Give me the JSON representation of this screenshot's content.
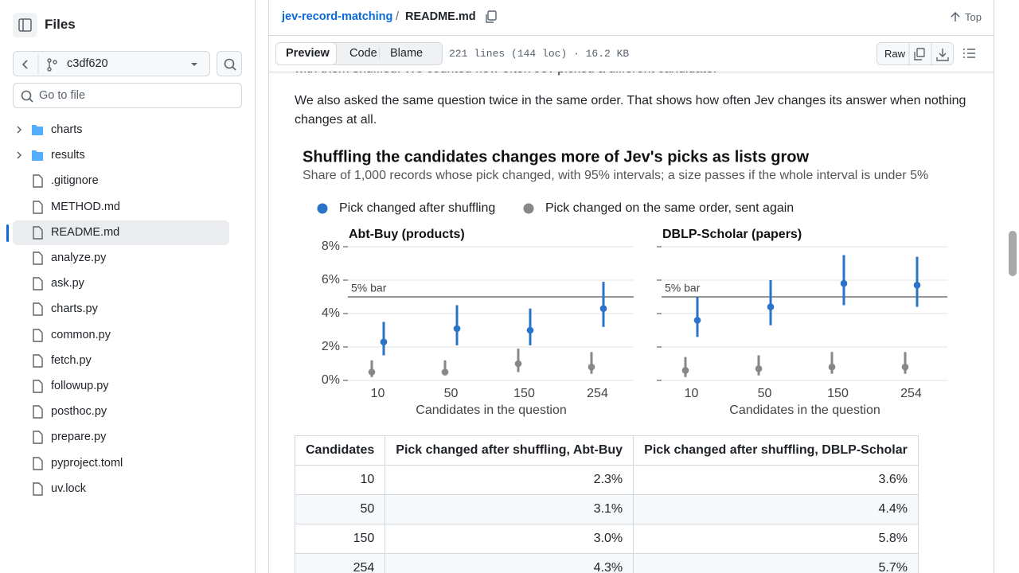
{
  "sidebar": {
    "title": "Files",
    "branch": "c3df620",
    "search_placeholder": "Go to file",
    "tree": [
      {
        "name": "charts",
        "type": "folder"
      },
      {
        "name": "results",
        "type": "folder"
      },
      {
        "name": ".gitignore",
        "type": "file"
      },
      {
        "name": "METHOD.md",
        "type": "file"
      },
      {
        "name": "README.md",
        "type": "file",
        "selected": true
      },
      {
        "name": "analyze.py",
        "type": "file"
      },
      {
        "name": "ask.py",
        "type": "file"
      },
      {
        "name": "charts.py",
        "type": "file"
      },
      {
        "name": "common.py",
        "type": "file"
      },
      {
        "name": "fetch.py",
        "type": "file"
      },
      {
        "name": "followup.py",
        "type": "file"
      },
      {
        "name": "posthoc.py",
        "type": "file"
      },
      {
        "name": "prepare.py",
        "type": "file"
      },
      {
        "name": "pyproject.toml",
        "type": "file"
      },
      {
        "name": "uv.lock",
        "type": "file"
      }
    ]
  },
  "header": {
    "repo": "jev-record-matching",
    "separator": "/",
    "file": "README.md",
    "top": "Top",
    "tabs": [
      "Preview",
      "Code",
      "Blame"
    ],
    "info": "221 lines (144 loc) · 16.2 KB",
    "raw": "Raw"
  },
  "readme": {
    "paragraphs": [
      "with them shuffled. We counted how often Jev picked a different candidate.",
      "We also asked the same question twice in the same order. That shows how often Jev changes its answer when nothing changes at all."
    ]
  },
  "chart_data": {
    "type": "dot-interval",
    "title": "Shuffling the candidates changes more of Jev's picks as lists grow",
    "subtitle": "Share of 1,000 records whose pick changed, with 95% intervals; a size passes if the whole interval is under 5%",
    "series": [
      {
        "name": "Pick changed after shuffling",
        "color": "#2b73c8"
      },
      {
        "name": "Pick changed on the same order, sent again",
        "color": "#878787"
      }
    ],
    "categories": [
      "10",
      "50",
      "150",
      "254"
    ],
    "xlabel": "Candidates in the question",
    "ylim": [
      0,
      8
    ],
    "yticks": [
      {
        "value": 0,
        "label": "0%"
      },
      {
        "value": 2,
        "label": "2%"
      },
      {
        "value": 4,
        "label": "4%"
      },
      {
        "value": 6,
        "label": "6%"
      },
      {
        "value": 8,
        "label": "8%"
      }
    ],
    "grid": true,
    "reference": {
      "value": 5,
      "label": "5% bar"
    },
    "panels": [
      {
        "title": "Abt-Buy (products)",
        "series": [
          {
            "values": [
              2.3,
              3.1,
              3.0,
              4.3
            ],
            "lower": [
              1.5,
              2.1,
              2.1,
              3.2
            ],
            "upper": [
              3.5,
              4.5,
              4.3,
              5.9
            ]
          },
          {
            "values": [
              0.5,
              0.5,
              1.0,
              0.8
            ],
            "lower": [
              0.2,
              0.3,
              0.5,
              0.4
            ],
            "upper": [
              1.2,
              1.2,
              1.9,
              1.7
            ]
          }
        ]
      },
      {
        "title": "DBLP-Scholar (papers)",
        "series": [
          {
            "values": [
              3.6,
              4.4,
              5.8,
              5.7
            ],
            "lower": [
              2.6,
              3.3,
              4.5,
              4.4
            ],
            "upper": [
              5.0,
              6.0,
              7.5,
              7.4
            ]
          },
          {
            "values": [
              0.6,
              0.7,
              0.8,
              0.8
            ],
            "lower": [
              0.2,
              0.3,
              0.4,
              0.4
            ],
            "upper": [
              1.4,
              1.5,
              1.7,
              1.7
            ]
          }
        ]
      }
    ]
  },
  "table": {
    "headers": [
      "Candidates",
      "Pick changed after shuffling, Abt-Buy",
      "Pick changed after shuffling, DBLP-Scholar"
    ],
    "rows": [
      [
        "10",
        "2.3%",
        "3.6%"
      ],
      [
        "50",
        "3.1%",
        "4.4%"
      ],
      [
        "150",
        "3.0%",
        "5.8%"
      ],
      [
        "254",
        "4.3%",
        "5.7%"
      ]
    ]
  }
}
